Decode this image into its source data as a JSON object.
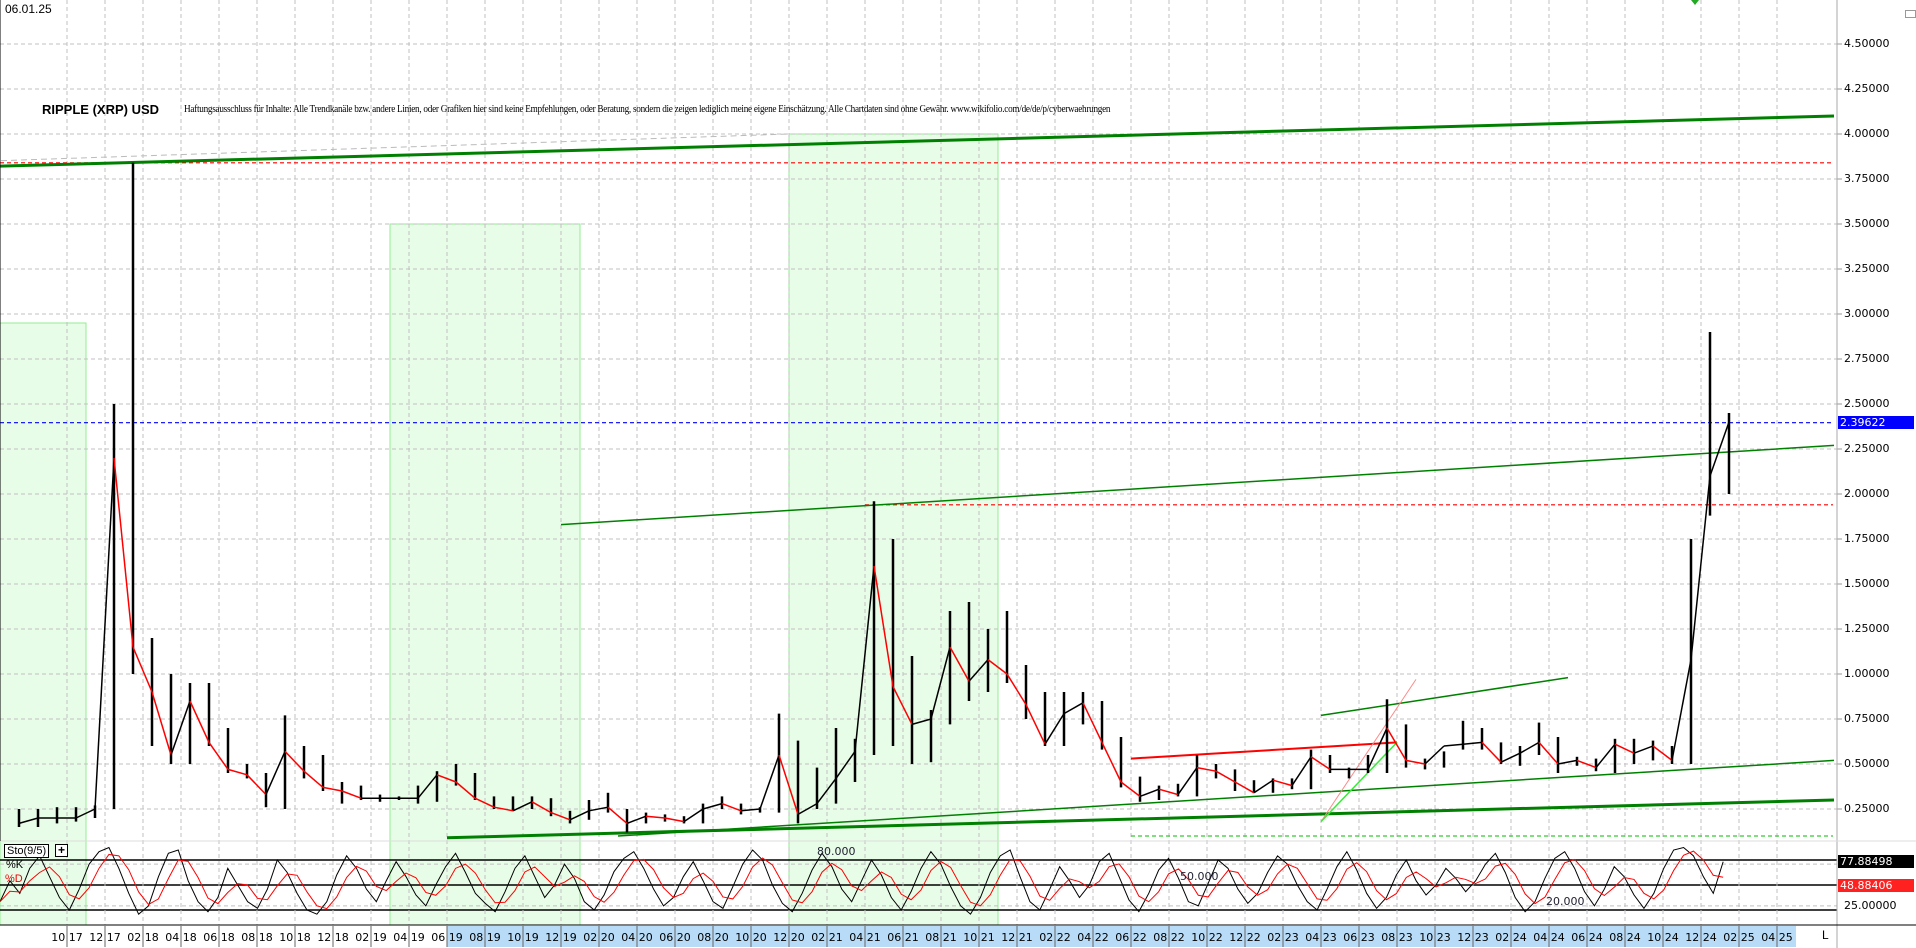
{
  "header": {
    "date": "06.01.25",
    "title": "RIPPLE (XRP) USD",
    "disclaimer": "Haftungsausschluss für Inhalte: Alle Trendkanäle bzw. andere Linien, oder Grafiken hier sind keine Empfehlungen, oder Beratung, sondern die zeigen lediglich meine eigene Einschätzung. Alle Chartdaten sind ohne Gewähr.  www.wikifolio.com/de/de/p/cyberwaehrungen"
  },
  "colors": {
    "up": "#000000",
    "down": "#ff0000",
    "trend": "#008000",
    "zone": "#e8fde8",
    "zone_border": "#90ee90",
    "last_price": "#0000ff",
    "axis_highlight": "#b8dcf8"
  },
  "chart_data": {
    "type": "bar",
    "subtype": "ohlc-monthly-approx",
    "grid": true,
    "ylim": [
      0,
      4.75
    ],
    "y_ticks": [
      "0.25000",
      "0.50000",
      "0.75000",
      "1.00000",
      "1.25000",
      "1.50000",
      "1.75000",
      "2.00000",
      "2.25000",
      "2.50000",
      "2.75000",
      "3.00000",
      "3.25000",
      "3.50000",
      "3.75000",
      "4.00000",
      "4.25000",
      "4.50000"
    ],
    "last_price": "2.39622",
    "x_ticks": [
      "10 17",
      "12 17",
      "02 18",
      "04 18",
      "06 18",
      "08 18",
      "10 18",
      "12 18",
      "02 19",
      "04 19",
      "06 19",
      "08 19",
      "10 19",
      "12 19",
      "02 20",
      "04 20",
      "06 20",
      "08 20",
      "10 20",
      "12 20",
      "02 21",
      "04 21",
      "06 21",
      "08 21",
      "10 21",
      "12 21",
      "02 22",
      "04 22",
      "06 22",
      "08 22",
      "10 22",
      "12 22",
      "02 23",
      "04 23",
      "06 23",
      "08 23",
      "10 23",
      "12 23",
      "02 24",
      "04 24",
      "06 24",
      "08 24",
      "10 24",
      "12 24",
      "02 25",
      "04 25"
    ],
    "bars": [
      [
        "2017-07",
        0.15,
        0.25,
        0.17
      ],
      [
        "2017-08",
        0.15,
        0.25,
        0.2
      ],
      [
        "2017-09",
        0.17,
        0.26,
        0.2
      ],
      [
        "2017-10",
        0.18,
        0.26,
        0.2
      ],
      [
        "2017-11",
        0.2,
        0.27,
        0.25
      ],
      [
        "2017-12",
        0.25,
        2.5,
        2.2
      ],
      [
        "2018-01",
        1.0,
        3.84,
        1.15
      ],
      [
        "2018-02",
        0.6,
        1.2,
        0.9
      ],
      [
        "2018-03",
        0.5,
        1.0,
        0.55
      ],
      [
        "2018-04",
        0.5,
        0.95,
        0.85
      ],
      [
        "2018-05",
        0.6,
        0.95,
        0.62
      ],
      [
        "2018-06",
        0.45,
        0.7,
        0.47
      ],
      [
        "2018-07",
        0.42,
        0.5,
        0.44
      ],
      [
        "2018-08",
        0.26,
        0.45,
        0.33
      ],
      [
        "2018-09",
        0.25,
        0.77,
        0.57
      ],
      [
        "2018-10",
        0.42,
        0.6,
        0.46
      ],
      [
        "2018-11",
        0.35,
        0.55,
        0.37
      ],
      [
        "2018-12",
        0.28,
        0.4,
        0.35
      ],
      [
        "2019-01",
        0.3,
        0.38,
        0.31
      ],
      [
        "2019-02",
        0.29,
        0.33,
        0.31
      ],
      [
        "2019-03",
        0.3,
        0.32,
        0.31
      ],
      [
        "2019-04",
        0.28,
        0.38,
        0.31
      ],
      [
        "2019-05",
        0.29,
        0.46,
        0.44
      ],
      [
        "2019-06",
        0.38,
        0.5,
        0.4
      ],
      [
        "2019-07",
        0.3,
        0.45,
        0.31
      ],
      [
        "2019-08",
        0.25,
        0.32,
        0.26
      ],
      [
        "2019-09",
        0.24,
        0.32,
        0.24
      ],
      [
        "2019-10",
        0.25,
        0.32,
        0.29
      ],
      [
        "2019-11",
        0.21,
        0.31,
        0.23
      ],
      [
        "2019-12",
        0.17,
        0.24,
        0.19
      ],
      [
        "2020-01",
        0.19,
        0.3,
        0.24
      ],
      [
        "2020-02",
        0.23,
        0.34,
        0.26
      ],
      [
        "2020-03",
        0.12,
        0.25,
        0.17
      ],
      [
        "2020-04",
        0.17,
        0.23,
        0.21
      ],
      [
        "2020-05",
        0.18,
        0.22,
        0.2
      ],
      [
        "2020-06",
        0.17,
        0.21,
        0.18
      ],
      [
        "2020-07",
        0.17,
        0.28,
        0.25
      ],
      [
        "2020-08",
        0.25,
        0.32,
        0.28
      ],
      [
        "2020-09",
        0.22,
        0.28,
        0.24
      ],
      [
        "2020-10",
        0.23,
        0.26,
        0.25
      ],
      [
        "2020-11",
        0.23,
        0.78,
        0.55
      ],
      [
        "2020-12",
        0.17,
        0.63,
        0.22
      ],
      [
        "2021-01",
        0.25,
        0.48,
        0.28
      ],
      [
        "2021-02",
        0.28,
        0.7,
        0.42
      ],
      [
        "2021-03",
        0.4,
        0.64,
        0.57
      ],
      [
        "2021-04",
        0.55,
        1.96,
        1.6
      ],
      [
        "2021-05",
        0.6,
        1.75,
        0.93
      ],
      [
        "2021-06",
        0.5,
        1.1,
        0.72
      ],
      [
        "2021-07",
        0.51,
        0.8,
        0.75
      ],
      [
        "2021-08",
        0.72,
        1.35,
        1.15
      ],
      [
        "2021-09",
        0.85,
        1.4,
        0.96
      ],
      [
        "2021-10",
        0.9,
        1.25,
        1.08
      ],
      [
        "2021-11",
        0.95,
        1.35,
        1.0
      ],
      [
        "2021-12",
        0.75,
        1.05,
        0.83
      ],
      [
        "2022-01",
        0.6,
        0.9,
        0.61
      ],
      [
        "2022-02",
        0.6,
        0.9,
        0.78
      ],
      [
        "2022-03",
        0.72,
        0.9,
        0.84
      ],
      [
        "2022-04",
        0.58,
        0.85,
        0.62
      ],
      [
        "2022-05",
        0.37,
        0.65,
        0.4
      ],
      [
        "2022-06",
        0.29,
        0.43,
        0.32
      ],
      [
        "2022-07",
        0.3,
        0.38,
        0.36
      ],
      [
        "2022-08",
        0.32,
        0.39,
        0.33
      ],
      [
        "2022-09",
        0.32,
        0.55,
        0.48
      ],
      [
        "2022-10",
        0.42,
        0.5,
        0.46
      ],
      [
        "2022-11",
        0.35,
        0.47,
        0.4
      ],
      [
        "2022-12",
        0.34,
        0.41,
        0.34
      ],
      [
        "2023-01",
        0.34,
        0.42,
        0.41
      ],
      [
        "2023-02",
        0.36,
        0.42,
        0.38
      ],
      [
        "2023-03",
        0.36,
        0.58,
        0.54
      ],
      [
        "2023-04",
        0.45,
        0.55,
        0.47
      ],
      [
        "2023-05",
        0.42,
        0.48,
        0.47
      ],
      [
        "2023-06",
        0.45,
        0.55,
        0.47
      ],
      [
        "2023-07",
        0.45,
        0.86,
        0.7
      ],
      [
        "2023-08",
        0.48,
        0.72,
        0.52
      ],
      [
        "2023-09",
        0.47,
        0.53,
        0.5
      ],
      [
        "2023-10",
        0.48,
        0.57,
        0.6
      ],
      [
        "2023-11",
        0.58,
        0.74,
        0.61
      ],
      [
        "2023-12",
        0.58,
        0.7,
        0.62
      ],
      [
        "2024-01",
        0.5,
        0.62,
        0.51
      ],
      [
        "2024-02",
        0.49,
        0.6,
        0.56
      ],
      [
        "2024-03",
        0.55,
        0.73,
        0.62
      ],
      [
        "2024-04",
        0.45,
        0.65,
        0.5
      ],
      [
        "2024-05",
        0.49,
        0.54,
        0.52
      ],
      [
        "2024-06",
        0.46,
        0.53,
        0.48
      ],
      [
        "2024-07",
        0.45,
        0.64,
        0.61
      ],
      [
        "2024-08",
        0.5,
        0.64,
        0.56
      ],
      [
        "2024-09",
        0.52,
        0.63,
        0.6
      ],
      [
        "2024-10",
        0.5,
        0.6,
        0.52
      ],
      [
        "2024-11",
        0.5,
        1.75,
        1.08
      ],
      [
        "2024-12",
        1.88,
        2.9,
        2.1
      ],
      [
        "2025-01",
        2.0,
        2.45,
        2.4
      ]
    ],
    "zones": [
      {
        "from": "2017-06",
        "to": "2017-11",
        "top": 2.95
      },
      {
        "from": "2019-03",
        "to": "2020-01",
        "top": 3.5
      },
      {
        "from": "2020-12",
        "to": "2021-11",
        "top": 4.0
      }
    ],
    "trendlines": [
      {
        "from": [
          "2017-06",
          3.82
        ],
        "to": [
          "2025-07",
          4.1
        ],
        "color": "#008000",
        "width": 3
      },
      {
        "from": [
          "2017-06",
          3.85
        ],
        "to": [
          "2020-12",
          4.0
        ],
        "color": "#bbbbbb",
        "width": 1,
        "dash": true
      },
      {
        "from": [
          "2019-12",
          1.83
        ],
        "to": [
          "2025-07",
          2.27
        ],
        "color": "#008000",
        "width": 1.5
      },
      {
        "from": [
          "2019-06",
          0.09
        ],
        "to": [
          "2025-07",
          0.3
        ],
        "color": "#008000",
        "width": 3
      },
      {
        "from": [
          "2020-03",
          0.1
        ],
        "to": [
          "2025-07",
          0.52
        ],
        "color": "#008000",
        "width": 1.5
      },
      {
        "from": [
          "2023-04",
          0.77
        ],
        "to": [
          "2024-05",
          0.98
        ],
        "color": "#008000",
        "width": 1.5
      },
      {
        "from": [
          "2022-06",
          0.53
        ],
        "to": [
          "2023-08",
          0.62
        ],
        "color": "#ff0000",
        "width": 2
      },
      {
        "from": [
          "2023-04",
          0.18
        ],
        "to": [
          "2023-09",
          0.97
        ],
        "color": "#ff8888",
        "width": 1
      },
      {
        "from": [
          "2023-04",
          0.18
        ],
        "to": [
          "2023-08",
          0.62
        ],
        "color": "#33ee33",
        "width": 1.5
      }
    ],
    "hlines": [
      {
        "value": 3.84,
        "from": "2017-06",
        "color": "#ff0000"
      },
      {
        "value": 2.39622,
        "from": "2017-06",
        "color": "#0000ff"
      },
      {
        "value": 1.94,
        "from": "2021-04",
        "color": "#ff0000"
      },
      {
        "value": 0.1,
        "from": "2022-06",
        "color": "#33cc33"
      }
    ],
    "indicator": {
      "name": "Sto(9/5)",
      "k_label": "%K",
      "d_label": "%D",
      "levels": [
        {
          "value": 80,
          "label": "80.000"
        },
        {
          "value": 50,
          "label": "50.000"
        },
        {
          "value": 20,
          "label": "20.000"
        }
      ],
      "axis_label": "25.00000",
      "k_last": "77.88498",
      "d_last": "48.88406",
      "ylim": [
        0,
        100
      ],
      "k": [
        30,
        55,
        40,
        70,
        85,
        60,
        35,
        20,
        45,
        75,
        90,
        95,
        70,
        40,
        15,
        25,
        60,
        88,
        92,
        55,
        30,
        18,
        35,
        70,
        50,
        30,
        22,
        45,
        80,
        65,
        40,
        20,
        15,
        30,
        62,
        85,
        70,
        45,
        30,
        55,
        78,
        60,
        38,
        25,
        50,
        72,
        88,
        65,
        40,
        28,
        18,
        42,
        70,
        85,
        60,
        35,
        50,
        75,
        58,
        30,
        20,
        38,
        66,
        82,
        90,
        70,
        45,
        25,
        35,
        60,
        78,
        55,
        30,
        22,
        48,
        75,
        92,
        80,
        50,
        28,
        18,
        40,
        68,
        88,
        72,
        45,
        30,
        55,
        80,
        62,
        35,
        20,
        42,
        70,
        90,
        75,
        48,
        25,
        15,
        35,
        65,
        85,
        92,
        60,
        30,
        20,
        45,
        72,
        55,
        35,
        50,
        78,
        88,
        60,
        32,
        18,
        40,
        68,
        82,
        58,
        30,
        25,
        52,
        80,
        70,
        45,
        28,
        40,
        65,
        85,
        75,
        50,
        30,
        20,
        45,
        72,
        90,
        68,
        40,
        22,
        35,
        62,
        80,
        55,
        38,
        50,
        70,
        58,
        42,
        55,
        75,
        88,
        65,
        35,
        18,
        30,
        58,
        82,
        90,
        70,
        42,
        25,
        45,
        72,
        60,
        38,
        22,
        40,
        70,
        92,
        95,
        85,
        60,
        40,
        77.88
      ]
    }
  },
  "controls": {
    "plus": "+",
    "l_button": "L"
  }
}
